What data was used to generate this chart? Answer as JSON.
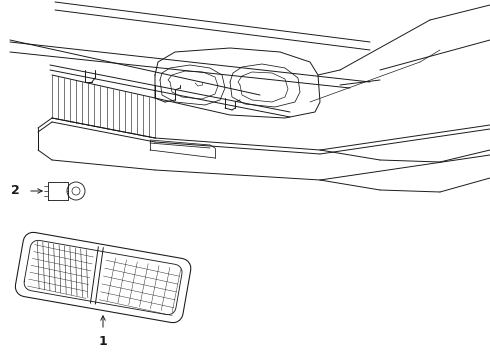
{
  "background_color": "#ffffff",
  "line_color": "#1a1a1a",
  "line_width": 0.7,
  "label1_text": "1",
  "label2_text": "2",
  "fig_width": 4.9,
  "fig_height": 3.6,
  "dpi": 100
}
